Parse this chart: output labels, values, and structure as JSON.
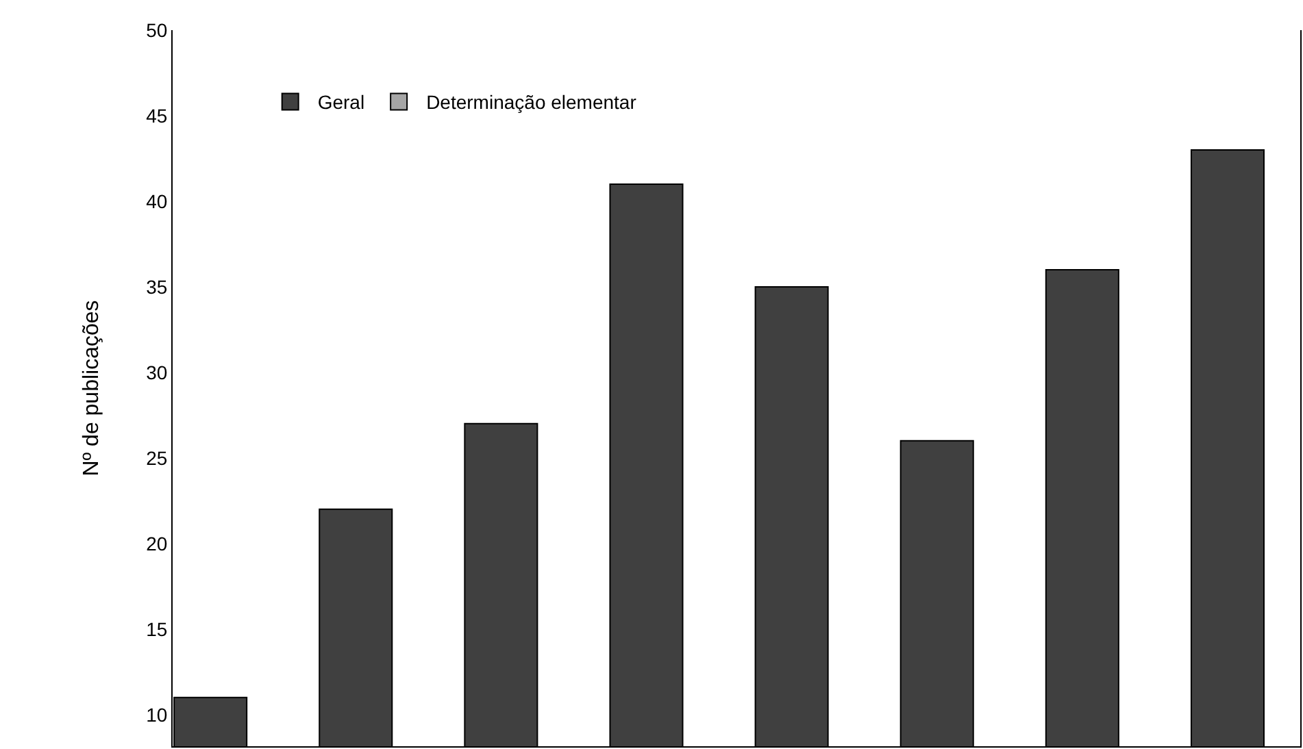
{
  "chart_data": {
    "type": "bar",
    "ylabel": "Nº de publicações",
    "categories": [
      null,
      null,
      null,
      null,
      null,
      null,
      null,
      null
    ],
    "series": [
      {
        "name": "Geral",
        "color": "#404040",
        "values": [
          11,
          22,
          27,
          41,
          35,
          26,
          36,
          43
        ]
      },
      {
        "name": "Determinação elementar",
        "color": "#a6a6a6",
        "values": [
          null,
          null,
          null,
          null,
          null,
          null,
          null,
          null
        ]
      }
    ],
    "ylim": [
      8.15,
      50
    ],
    "yticks": [
      10,
      15,
      20,
      25,
      30,
      35,
      40,
      45,
      50
    ],
    "legend": "top left",
    "tick_labels": "y"
  }
}
